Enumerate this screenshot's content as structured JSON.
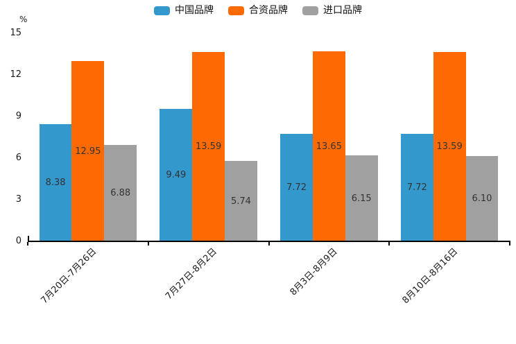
{
  "chart_data": {
    "type": "bar",
    "title": "",
    "unit_label": "%",
    "xlabel": "",
    "ylabel": "%",
    "ylim": [
      0,
      15
    ],
    "yticks": [
      0,
      3,
      6,
      9,
      12,
      15
    ],
    "grid": false,
    "legend_position": "top-center",
    "categories": [
      "7月20日-7月26日",
      "7月27日-8月2日",
      "8月3日-8月9日",
      "8月10日-8月16日"
    ],
    "series": [
      {
        "name": "中国品牌",
        "color": "#3398CC",
        "values": [
          8.38,
          9.49,
          7.72,
          7.72
        ],
        "labels": [
          "8.38",
          "9.49",
          "7.72",
          "7.72"
        ]
      },
      {
        "name": "合资品牌",
        "color": "#FD6A02",
        "values": [
          12.95,
          13.59,
          13.65,
          13.59
        ],
        "labels": [
          "12.95",
          "13.59",
          "13.65",
          "13.59"
        ]
      },
      {
        "name": "进口品牌",
        "color": "#A0A0A0",
        "values": [
          6.88,
          5.74,
          6.15,
          6.1
        ],
        "labels": [
          "6.88",
          "5.74",
          "6.15",
          "6.10"
        ]
      }
    ],
    "colors": {
      "axis": "#000000",
      "tick_text": "#1a1a1a",
      "value_label_text": "#333333",
      "background": "#ffffff"
    }
  }
}
